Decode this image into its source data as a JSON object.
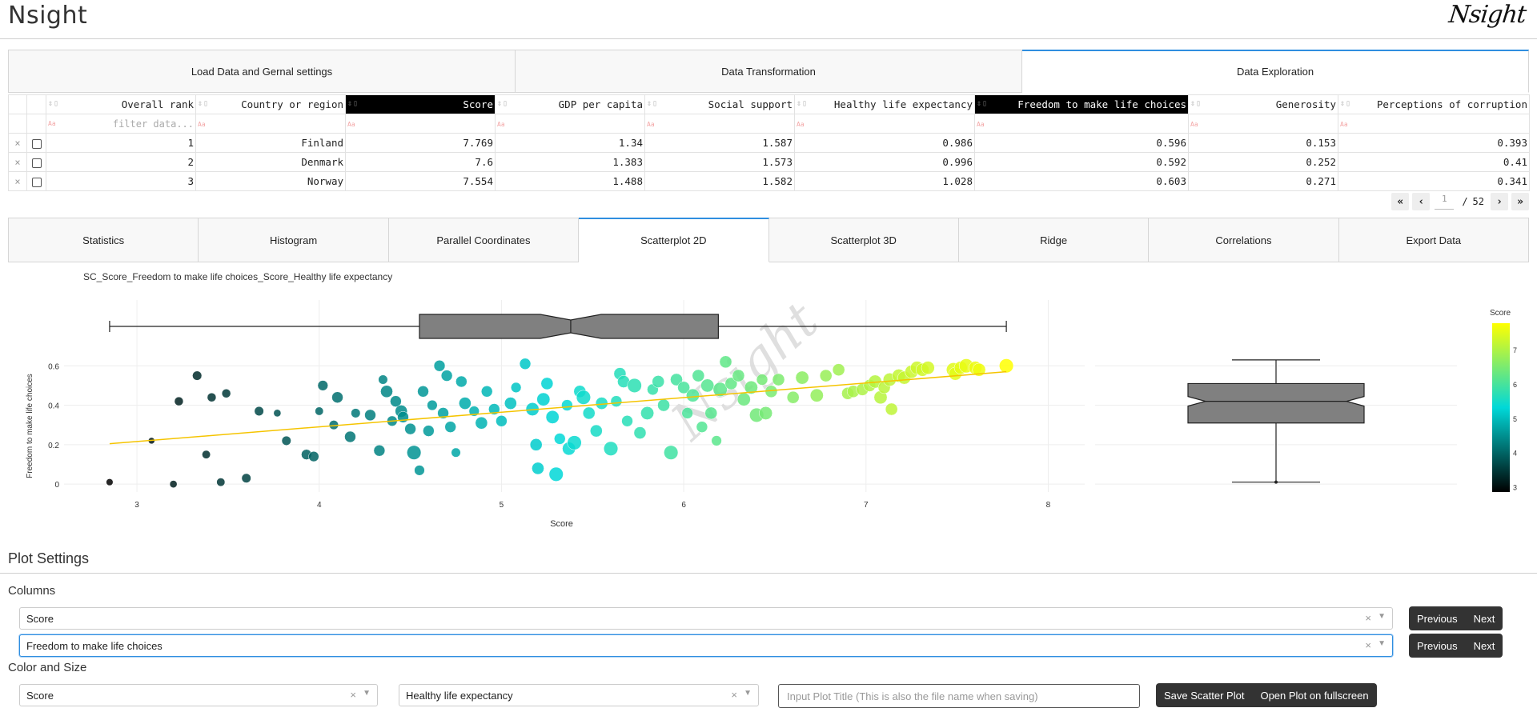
{
  "header": {
    "app_title": "Nsight",
    "logo_text": "Nsight"
  },
  "main_tabs": [
    {
      "label": "Load Data and Gernal settings",
      "active": false
    },
    {
      "label": "Data Transformation",
      "active": false
    },
    {
      "label": "Data Exploration",
      "active": true
    }
  ],
  "table": {
    "columns": [
      "Overall rank",
      "Country or region",
      "Score",
      "GDP per capita",
      "Social support",
      "Healthy life expectancy",
      "Freedom to make life choices",
      "Generosity",
      "Perceptions of corruption"
    ],
    "selected_columns": [
      "Score",
      "Freedom to make life choices"
    ],
    "filter_placeholder": "filter data...",
    "rows": [
      [
        "1",
        "Finland",
        "7.769",
        "1.34",
        "1.587",
        "0.986",
        "0.596",
        "0.153",
        "0.393"
      ],
      [
        "2",
        "Denmark",
        "7.6",
        "1.383",
        "1.573",
        "0.996",
        "0.592",
        "0.252",
        "0.41"
      ],
      [
        "3",
        "Norway",
        "7.554",
        "1.488",
        "1.582",
        "1.028",
        "0.603",
        "0.271",
        "0.341"
      ]
    ],
    "row_delete_glyph": "×"
  },
  "pager": {
    "current_page": "1",
    "separator": "/",
    "total_pages": "52"
  },
  "sub_tabs": [
    {
      "label": "Statistics",
      "active": false
    },
    {
      "label": "Histogram",
      "active": false
    },
    {
      "label": "Parallel Coordinates",
      "active": false
    },
    {
      "label": "Scatterplot 2D",
      "active": true
    },
    {
      "label": "Scatterplot 3D",
      "active": false
    },
    {
      "label": "Ridge",
      "active": false
    },
    {
      "label": "Correlations",
      "active": false
    },
    {
      "label": "Export Data",
      "active": false
    }
  ],
  "plot": {
    "title": "SC_Score_Freedom to make life choices_Score_Healthy life expectancy",
    "watermark": "Nsight"
  },
  "chart_data": {
    "type": "scatter",
    "xlabel": "Score",
    "ylabel": "Freedom to make life choices",
    "x_ticks": [
      3,
      4,
      5,
      6,
      7,
      8
    ],
    "y_ticks": [
      0,
      0.2,
      0.4,
      0.6
    ],
    "xlim": [
      2.6,
      8.2
    ],
    "ylim": [
      -0.04,
      0.67
    ],
    "colorbar": {
      "title": "Score",
      "ticks": [
        3,
        4,
        5,
        6,
        7
      ],
      "range": [
        2.85,
        7.77
      ]
    },
    "colorscale": [
      "#000000",
      "#00d8d8",
      "#ffff00"
    ],
    "trendline": {
      "x": [
        2.85,
        7.77
      ],
      "y": [
        0.205,
        0.57
      ],
      "color": "#f5c400"
    },
    "x_boxplot": {
      "min": 2.85,
      "q1": 4.55,
      "median": 5.38,
      "q3": 6.19,
      "max": 7.77
    },
    "y_boxplot": {
      "min": 0.01,
      "q1": 0.31,
      "median": 0.42,
      "q3": 0.51,
      "max": 0.63
    },
    "points": [
      [
        2.85,
        0.01,
        0.05
      ],
      [
        3.08,
        0.22,
        0.0
      ],
      [
        3.2,
        0.0,
        0.1
      ],
      [
        3.23,
        0.42,
        0.25
      ],
      [
        3.33,
        0.55,
        0.3
      ],
      [
        3.38,
        0.15,
        0.2
      ],
      [
        3.41,
        0.44,
        0.25
      ],
      [
        3.46,
        0.01,
        0.2
      ],
      [
        3.49,
        0.46,
        0.25
      ],
      [
        3.6,
        0.03,
        0.3
      ],
      [
        3.67,
        0.37,
        0.3
      ],
      [
        3.77,
        0.36,
        0.1
      ],
      [
        3.82,
        0.22,
        0.3
      ],
      [
        3.93,
        0.15,
        0.4
      ],
      [
        3.97,
        0.14,
        0.4
      ],
      [
        4.0,
        0.37,
        0.2
      ],
      [
        4.02,
        0.5,
        0.4
      ],
      [
        4.08,
        0.3,
        0.3
      ],
      [
        4.1,
        0.44,
        0.5
      ],
      [
        4.17,
        0.24,
        0.5
      ],
      [
        4.2,
        0.36,
        0.3
      ],
      [
        4.28,
        0.35,
        0.5
      ],
      [
        4.33,
        0.17,
        0.5
      ],
      [
        4.35,
        0.53,
        0.3
      ],
      [
        4.37,
        0.47,
        0.6
      ],
      [
        4.4,
        0.32,
        0.4
      ],
      [
        4.42,
        0.42,
        0.5
      ],
      [
        4.45,
        0.37,
        0.6
      ],
      [
        4.46,
        0.34,
        0.5
      ],
      [
        4.5,
        0.28,
        0.5
      ],
      [
        4.52,
        0.16,
        0.8
      ],
      [
        4.55,
        0.07,
        0.4
      ],
      [
        4.57,
        0.47,
        0.5
      ],
      [
        4.6,
        0.27,
        0.5
      ],
      [
        4.62,
        0.4,
        0.4
      ],
      [
        4.66,
        0.6,
        0.5
      ],
      [
        4.68,
        0.36,
        0.5
      ],
      [
        4.7,
        0.55,
        0.5
      ],
      [
        4.72,
        0.29,
        0.5
      ],
      [
        4.75,
        0.16,
        0.3
      ],
      [
        4.78,
        0.52,
        0.5
      ],
      [
        4.8,
        0.41,
        0.6
      ],
      [
        4.85,
        0.37,
        0.4
      ],
      [
        4.89,
        0.31,
        0.6
      ],
      [
        4.92,
        0.47,
        0.5
      ],
      [
        4.96,
        0.38,
        0.5
      ],
      [
        5.0,
        0.32,
        0.5
      ],
      [
        5.05,
        0.41,
        0.6
      ],
      [
        5.08,
        0.49,
        0.4
      ],
      [
        5.13,
        0.61,
        0.5
      ],
      [
        5.17,
        0.38,
        0.7
      ],
      [
        5.19,
        0.2,
        0.6
      ],
      [
        5.2,
        0.08,
        0.6
      ],
      [
        5.23,
        0.43,
        0.7
      ],
      [
        5.25,
        0.51,
        0.6
      ],
      [
        5.28,
        0.34,
        0.7
      ],
      [
        5.3,
        0.05,
        0.8
      ],
      [
        5.32,
        0.23,
        0.5
      ],
      [
        5.36,
        0.4,
        0.5
      ],
      [
        5.37,
        0.18,
        0.7
      ],
      [
        5.4,
        0.21,
        0.8
      ],
      [
        5.43,
        0.47,
        0.6
      ],
      [
        5.45,
        0.44,
        0.8
      ],
      [
        5.48,
        0.36,
        0.6
      ],
      [
        5.52,
        0.27,
        0.6
      ],
      [
        5.55,
        0.41,
        0.6
      ],
      [
        5.6,
        0.18,
        0.8
      ],
      [
        5.63,
        0.42,
        0.5
      ],
      [
        5.65,
        0.56,
        0.6
      ],
      [
        5.67,
        0.52,
        0.6
      ],
      [
        5.69,
        0.32,
        0.5
      ],
      [
        5.73,
        0.5,
        0.8
      ],
      [
        5.76,
        0.26,
        0.6
      ],
      [
        5.8,
        0.36,
        0.7
      ],
      [
        5.83,
        0.48,
        0.5
      ],
      [
        5.86,
        0.52,
        0.6
      ],
      [
        5.89,
        0.4,
        0.6
      ],
      [
        5.93,
        0.16,
        0.8
      ],
      [
        5.96,
        0.53,
        0.6
      ],
      [
        6.0,
        0.49,
        0.6
      ],
      [
        6.02,
        0.36,
        0.5
      ],
      [
        6.05,
        0.45,
        0.7
      ],
      [
        6.08,
        0.55,
        0.6
      ],
      [
        6.1,
        0.29,
        0.5
      ],
      [
        6.13,
        0.5,
        0.7
      ],
      [
        6.15,
        0.36,
        0.6
      ],
      [
        6.18,
        0.22,
        0.4
      ],
      [
        6.2,
        0.48,
        0.8
      ],
      [
        6.23,
        0.62,
        0.6
      ],
      [
        6.26,
        0.51,
        0.6
      ],
      [
        6.3,
        0.55,
        0.6
      ],
      [
        6.33,
        0.43,
        0.7
      ],
      [
        6.37,
        0.49,
        0.7
      ],
      [
        6.4,
        0.35,
        0.8
      ],
      [
        6.43,
        0.53,
        0.5
      ],
      [
        6.45,
        0.36,
        0.7
      ],
      [
        6.48,
        0.47,
        0.6
      ],
      [
        6.52,
        0.53,
        0.6
      ],
      [
        6.6,
        0.44,
        0.6
      ],
      [
        6.65,
        0.54,
        0.7
      ],
      [
        6.73,
        0.45,
        0.7
      ],
      [
        6.78,
        0.55,
        0.6
      ],
      [
        6.85,
        0.58,
        0.6
      ],
      [
        6.9,
        0.46,
        0.6
      ],
      [
        6.93,
        0.47,
        0.6
      ],
      [
        6.98,
        0.48,
        0.6
      ],
      [
        7.02,
        0.5,
        0.6
      ],
      [
        7.05,
        0.52,
        0.7
      ],
      [
        7.08,
        0.44,
        0.7
      ],
      [
        7.1,
        0.49,
        0.6
      ],
      [
        7.13,
        0.53,
        0.7
      ],
      [
        7.14,
        0.38,
        0.6
      ],
      [
        7.18,
        0.55,
        0.7
      ],
      [
        7.21,
        0.54,
        0.7
      ],
      [
        7.25,
        0.57,
        0.7
      ],
      [
        7.28,
        0.59,
        0.7
      ],
      [
        7.31,
        0.58,
        0.7
      ],
      [
        7.34,
        0.59,
        0.7
      ],
      [
        7.48,
        0.58,
        0.8
      ],
      [
        7.49,
        0.56,
        0.7
      ],
      [
        7.52,
        0.59,
        0.7
      ],
      [
        7.55,
        0.6,
        0.8
      ],
      [
        7.6,
        0.59,
        0.7
      ],
      [
        7.62,
        0.58,
        0.7
      ],
      [
        7.77,
        0.6,
        0.8
      ]
    ]
  },
  "plot_settings": {
    "title": "Plot Settings",
    "columns_label": "Columns",
    "x_column": "Score",
    "y_column": "Freedom to make life choices",
    "previous_label": "Previous",
    "next_label": "Next",
    "color_size_label": "Color and Size",
    "color_column": "Score",
    "size_column": "Healthy life expectancy",
    "plot_title_placeholder": "Input Plot Title (This is also the file name when saving)",
    "save_label": "Save Scatter Plot",
    "fullscreen_label": "Open Plot on fullscreen",
    "clear_glyph": "×",
    "caret_glyph": "▼"
  }
}
